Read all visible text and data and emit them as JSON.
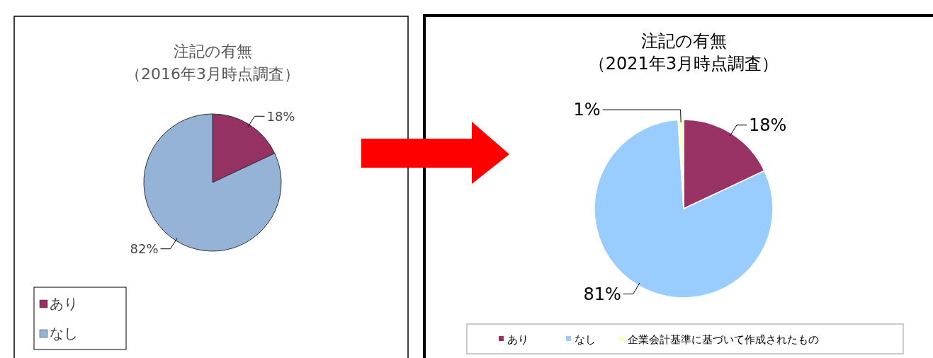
{
  "chart_data": [
    {
      "type": "pie",
      "title": "注記の有無",
      "subtitle": "（2016年3月時点調査）",
      "categories": [
        "あり",
        "なし"
      ],
      "values": [
        18,
        82
      ],
      "colors": [
        "#953163",
        "#95b3d7"
      ],
      "value_labels": [
        "18%",
        "82%"
      ],
      "legend": "bottom left"
    },
    {
      "type": "pie",
      "title": "注記の有無",
      "subtitle": "（2021年3月時点調査）",
      "categories": [
        "あり",
        "なし",
        "企業会計基準に基づいて作成されたもの"
      ],
      "values": [
        18,
        81,
        1
      ],
      "colors": [
        "#993366",
        "#99ccff",
        "#ffffcc"
      ],
      "value_labels": [
        "18%",
        "81%",
        "1%"
      ],
      "legend": "bottom"
    }
  ]
}
